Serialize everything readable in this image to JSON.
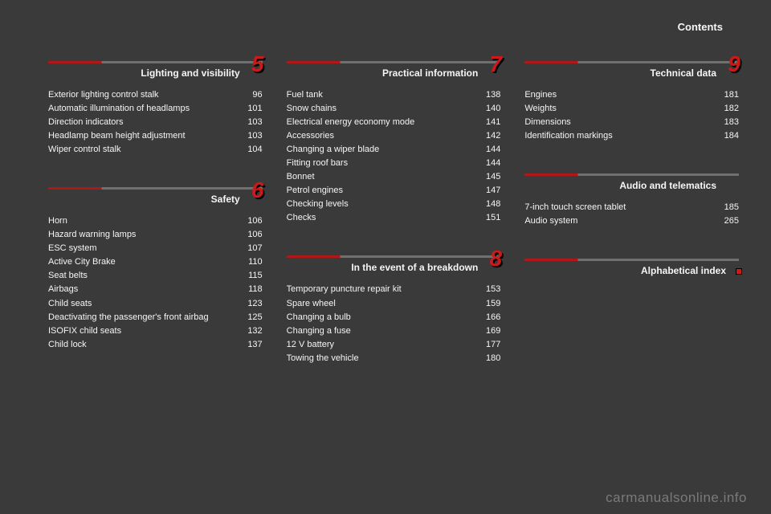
{
  "header": "Contents",
  "watermark": "carmanualsonline.info",
  "columns": [
    {
      "sections": [
        {
          "number": "5",
          "title": "Lighting and visibility",
          "entries": [
            {
              "label": "Exterior lighting control stalk",
              "page": "96"
            },
            {
              "label": "Automatic illumination of headlamps",
              "page": "101"
            },
            {
              "label": "Direction indicators",
              "page": "103"
            },
            {
              "label": "Headlamp beam height adjustment",
              "page": "103"
            },
            {
              "label": "Wiper control stalk",
              "page": "104"
            }
          ]
        },
        {
          "number": "6",
          "title": "Safety",
          "entries": [
            {
              "label": "Horn",
              "page": "106"
            },
            {
              "label": "Hazard warning lamps",
              "page": "106"
            },
            {
              "label": "ESC system",
              "page": "107"
            },
            {
              "label": "Active City Brake",
              "page": "110"
            },
            {
              "label": "Seat belts",
              "page": "115"
            },
            {
              "label": "Airbags",
              "page": "118"
            },
            {
              "label": "Child seats",
              "page": "123"
            },
            {
              "label": "Deactivating the passenger's front airbag",
              "page": "125"
            },
            {
              "label": "ISOFIX child seats",
              "page": "132"
            },
            {
              "label": "Child lock",
              "page": "137"
            }
          ]
        }
      ]
    },
    {
      "sections": [
        {
          "number": "7",
          "title": "Practical information",
          "entries": [
            {
              "label": "Fuel tank",
              "page": "138"
            },
            {
              "label": "Snow chains",
              "page": "140"
            },
            {
              "label": "Electrical energy economy mode",
              "page": "141"
            },
            {
              "label": "Accessories",
              "page": "142"
            },
            {
              "label": "Changing a wiper blade",
              "page": "144"
            },
            {
              "label": "Fitting roof bars",
              "page": "144"
            },
            {
              "label": "Bonnet",
              "page": "145"
            },
            {
              "label": "Petrol engines",
              "page": "147"
            },
            {
              "label": "Checking levels",
              "page": "148"
            },
            {
              "label": "Checks",
              "page": "151"
            }
          ]
        },
        {
          "number": "8",
          "title": "In the event of a breakdown",
          "entries": [
            {
              "label": "Temporary puncture repair kit",
              "page": "153"
            },
            {
              "label": "Spare wheel",
              "page": "159"
            },
            {
              "label": "Changing a bulb",
              "page": "166"
            },
            {
              "label": "Changing a fuse",
              "page": "169"
            },
            {
              "label": "12 V battery",
              "page": "177"
            },
            {
              "label": "Towing the vehicle",
              "page": "180"
            }
          ]
        }
      ]
    },
    {
      "sections": [
        {
          "number": "9",
          "title": "Technical data",
          "entries": [
            {
              "label": "Engines",
              "page": "181"
            },
            {
              "label": "Weights",
              "page": "182"
            },
            {
              "label": "Dimensions",
              "page": "183"
            },
            {
              "label": "Identification markings",
              "page": "184"
            }
          ]
        },
        {
          "number": "",
          "title": "Audio and telematics",
          "entries": [
            {
              "label": "7-inch touch screen tablet",
              "page": "185"
            },
            {
              "label": "Audio system",
              "page": "265"
            }
          ]
        },
        {
          "number": "",
          "title": "Alphabetical index",
          "index_marker": true,
          "entries": []
        }
      ]
    }
  ]
}
